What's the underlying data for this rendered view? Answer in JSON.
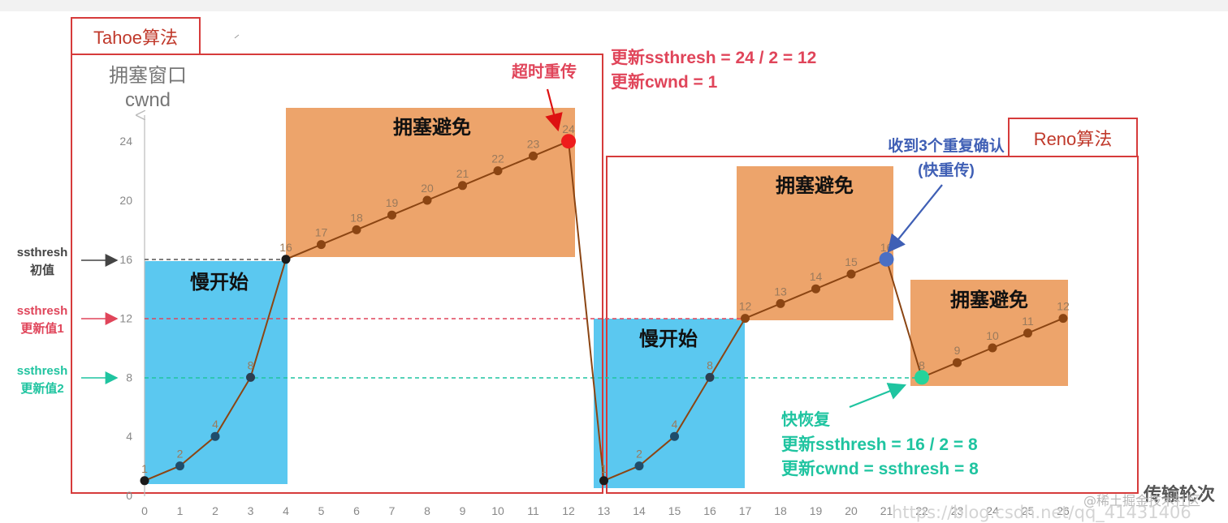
{
  "labels": {
    "tahoe": "Tahoe算法",
    "reno": "Reno算法",
    "y_axis_line1": "拥塞窗口",
    "y_axis_line2": "cwnd",
    "ssthresh_init_1": "ssthresh",
    "ssthresh_init_2": "初值",
    "ssthresh_upd1_1": "ssthresh",
    "ssthresh_upd1_2": "更新值1",
    "ssthresh_upd2_1": "ssthresh",
    "ssthresh_upd2_2": "更新值2",
    "slow_start": "慢开始",
    "congestion_avoidance": "拥塞避免",
    "timeout": "超时重传",
    "timeout_note_1": "更新ssthresh = 24 / 2 = 12",
    "timeout_note_2": "更新cwnd = 1",
    "dupack_1": "收到3个重复确认",
    "dupack_2": "(快重传)",
    "fast_recovery": "快恢复",
    "fr_note_1": "更新ssthresh = 16 / 2 = 8",
    "fr_note_2": "更新cwnd = ssthresh = 8",
    "corner_text": "传输轮次"
  },
  "watermark": {
    "line1": "@稀土掘金技术社区",
    "line2": "https://blog.csdn.net/qq_41431406"
  },
  "chart_data": {
    "type": "line",
    "x_ticks": [
      0,
      1,
      2,
      3,
      4,
      5,
      6,
      7,
      8,
      9,
      10,
      11,
      12,
      13,
      14,
      15,
      16,
      17,
      18,
      19,
      20,
      21,
      22,
      23,
      24,
      25,
      26
    ],
    "y_ticks": [
      0,
      4,
      8,
      12,
      16,
      20,
      24
    ],
    "ylim": [
      0,
      24
    ],
    "xlim": [
      0,
      26
    ],
    "series": [
      {
        "x": [
          0,
          1,
          2,
          3,
          4,
          5,
          6,
          7,
          8,
          9,
          10,
          11,
          12,
          13,
          14,
          15,
          16,
          17,
          18,
          19,
          20,
          21,
          22,
          23,
          24,
          25,
          26
        ],
        "y": [
          1,
          2,
          4,
          8,
          16,
          17,
          18,
          19,
          20,
          21,
          22,
          23,
          24,
          1,
          2,
          4,
          8,
          12,
          13,
          14,
          15,
          16,
          8,
          9,
          10,
          11,
          12
        ]
      }
    ],
    "thresholds": [
      16,
      12,
      8
    ],
    "colors": {
      "line": "#8b4513",
      "slow_start_fill": "#5bc8f0",
      "cong_avoid_fill": "#eda46b",
      "frame": "#d63b3b",
      "ssthresh_init": "#444444",
      "ssthresh_1": "#e0455a",
      "ssthresh_2": "#1fc4a0",
      "timeout_point": "#ee1c1c",
      "dupack_point": "#4a6fc4",
      "recovery_point": "#25d39b"
    }
  }
}
